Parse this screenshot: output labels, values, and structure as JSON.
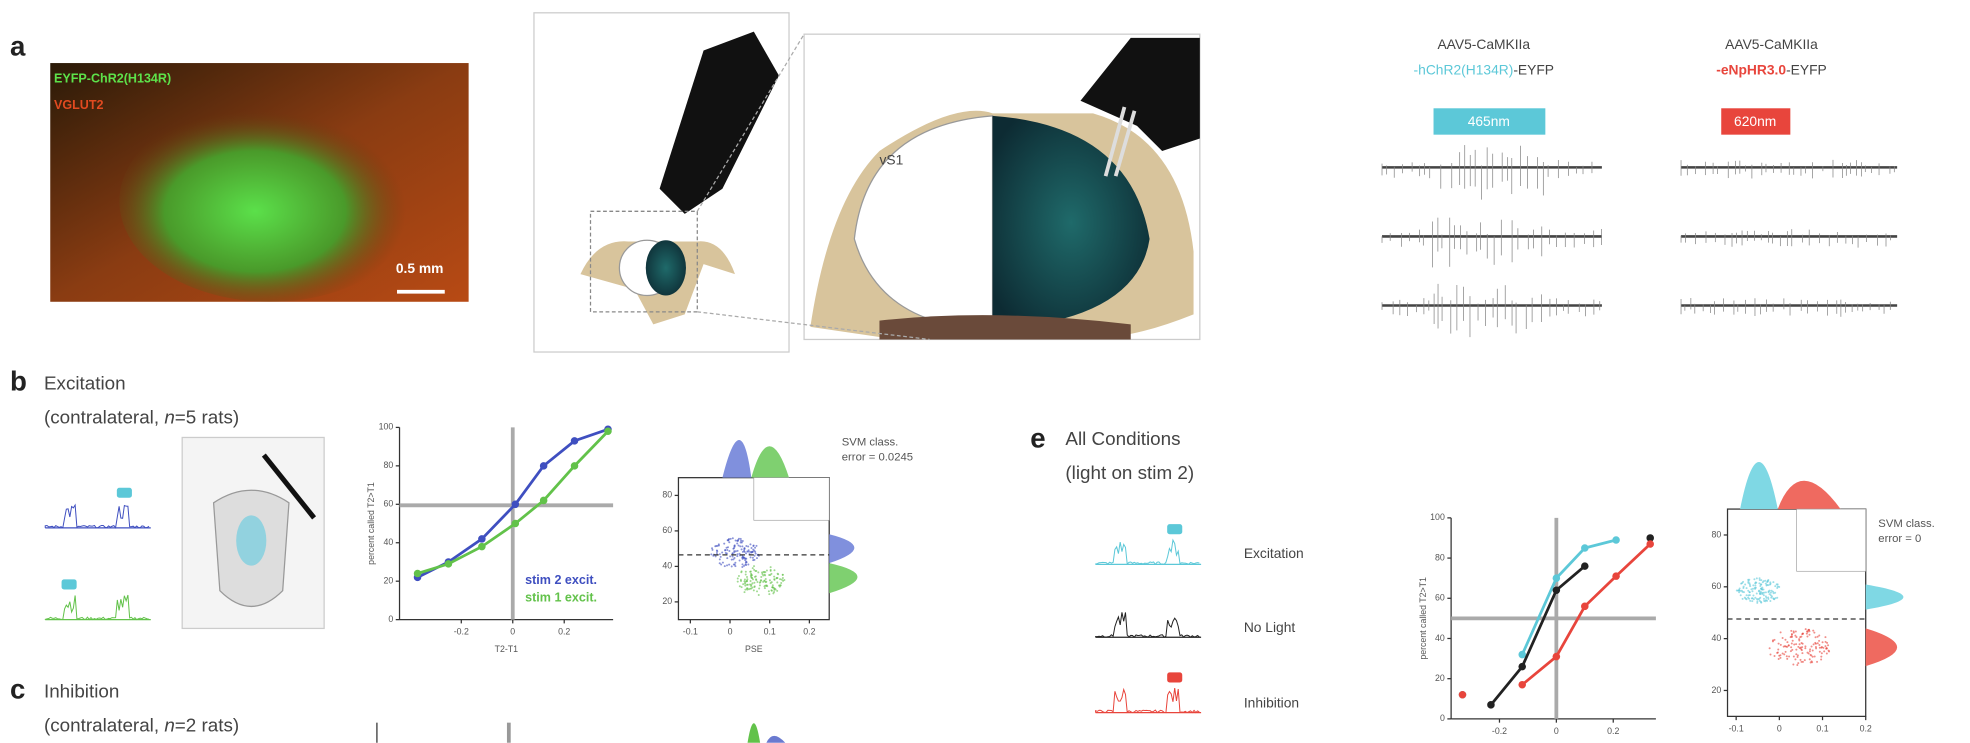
{
  "panel_a": {
    "label": "a",
    "stain_1": "EYFP-ChR2(H134R)",
    "stain_2": "VGLUT2",
    "scale_bar": "0.5 mm",
    "region": "vS1",
    "constructs": [
      {
        "vector": "AAV5-CaMKIIa",
        "opsin": "-hChR2(H134R)",
        "suffix": "-EYFP",
        "light": "465nm"
      },
      {
        "vector": "AAV5-CaMKIIa",
        "opsin": "-eNpHR3.0",
        "suffix": "-EYFP",
        "light": "620nm"
      }
    ]
  },
  "panel_b": {
    "label": "b",
    "title": "Excitation",
    "sub_1": "(contralateral, ",
    "sub_n": "n",
    "sub_2": "=5 rats)"
  },
  "panel_c": {
    "label": "c",
    "title": "Inhibition",
    "sub_1": "(contralateral, ",
    "sub_n": "n",
    "sub_2": "=2 rats)"
  },
  "panel_e": {
    "label": "e",
    "title": "All Conditions",
    "subtitle": "(light on stim 2)"
  },
  "chart_data": [
    {
      "type": "line",
      "ylabel": "percent called T2>T1",
      "xlabel": "T2-T1",
      "x": [
        -0.37,
        -0.25,
        -0.12,
        0.01,
        0.12,
        0.24,
        0.37
      ],
      "series": [
        {
          "name": "stim 2 excit.",
          "color": "#3f4fc0",
          "values": [
            22,
            30,
            42,
            60,
            80,
            93,
            99
          ]
        },
        {
          "name": "stim 1 excit.",
          "color": "#62c24a",
          "values": [
            24,
            29,
            38,
            50,
            62,
            80,
            98
          ]
        }
      ],
      "xlim": [
        -0.44,
        0.39
      ],
      "ylim": [
        0,
        100
      ],
      "xticks": [
        -0.2,
        0,
        0.2
      ],
      "yticks": [
        0,
        20,
        40,
        60,
        80,
        100
      ]
    },
    {
      "type": "line",
      "ylabel": "percent called T2>T1",
      "x": [
        -0.33,
        -0.23,
        -0.12,
        0,
        0.1,
        0.21,
        0.33
      ],
      "series": [
        {
          "name": "Excitation",
          "color": "#5cc8d8",
          "values": [
            12,
            null,
            32,
            70,
            85,
            89,
            null
          ]
        },
        {
          "name": "No Light",
          "color": "#222222",
          "values": [
            null,
            7,
            26,
            64,
            76,
            null,
            90
          ]
        },
        {
          "name": "Inhibition",
          "color": "#e8453c",
          "values": [
            12,
            null,
            17,
            31,
            56,
            71,
            87
          ]
        }
      ],
      "xlim": [
        -0.37,
        0.35
      ],
      "ylim": [
        0,
        100
      ],
      "xticks": [
        -0.2,
        0,
        0.2
      ],
      "yticks": [
        0,
        20,
        40,
        60,
        80,
        100
      ]
    }
  ],
  "svm_b": {
    "line_1": "SVM class.",
    "line_2": "error = 0.0245",
    "xlabel": "PSE",
    "xlim": [
      -0.13,
      0.25
    ],
    "ylim": [
      10,
      90
    ],
    "xticks": [
      -0.1,
      0,
      0.1,
      0.2
    ],
    "yticks": [
      20,
      40,
      60,
      80
    ]
  },
  "svm_e": {
    "line_1": "SVM class.",
    "line_2": "error = 0",
    "xlim": [
      -0.12,
      0.2
    ],
    "ylim": [
      10,
      90
    ],
    "xticks": [
      -0.1,
      0,
      0.1,
      0.2
    ],
    "yticks": [
      20,
      40,
      60,
      80
    ]
  }
}
